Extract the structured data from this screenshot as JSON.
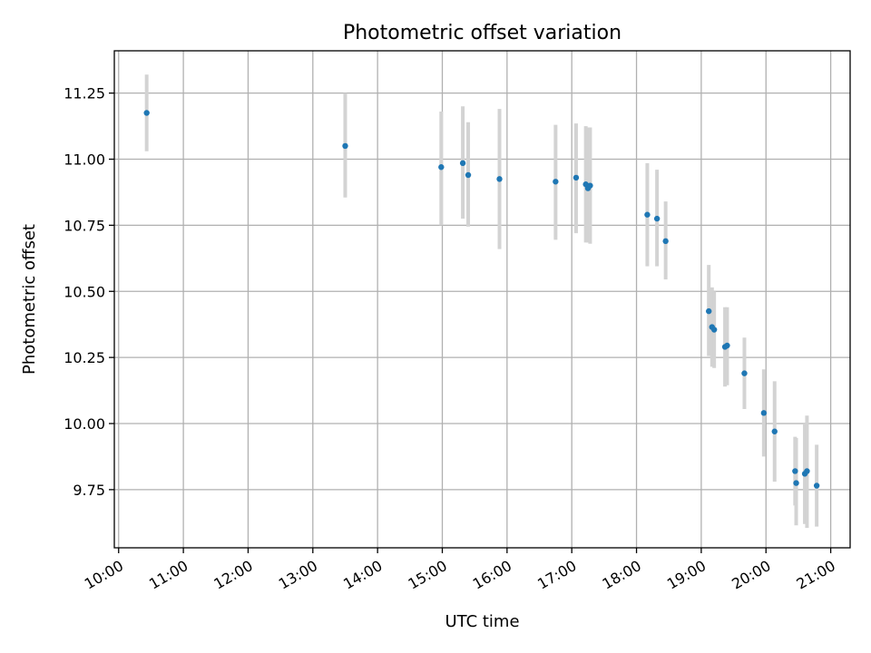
{
  "chart_data": {
    "type": "scatter",
    "title": "Photometric offset variation",
    "xlabel": "UTC time",
    "ylabel": "Photometric offset",
    "xlim": [
      "09:56",
      "21:18"
    ],
    "ylim": [
      9.53,
      11.41
    ],
    "xticks": [
      "10:00",
      "11:00",
      "12:00",
      "13:00",
      "14:00",
      "15:00",
      "16:00",
      "17:00",
      "18:00",
      "19:00",
      "20:00",
      "21:00"
    ],
    "yticks": [
      9.75,
      10.0,
      10.25,
      10.5,
      10.75,
      11.0,
      11.25
    ],
    "ytick_labels": [
      "9.75",
      "10.00",
      "10.25",
      "10.50",
      "10.75",
      "11.00",
      "11.25"
    ],
    "grid": true,
    "marker_color": "#1f77b4",
    "errorbar_color": "#d3d3d3",
    "points": [
      {
        "x": "10:26",
        "y": 11.175,
        "lo": 11.03,
        "hi": 11.32
      },
      {
        "x": "13:30",
        "y": 11.05,
        "lo": 10.855,
        "hi": 11.25
      },
      {
        "x": "14:59",
        "y": 10.97,
        "lo": 10.75,
        "hi": 11.18
      },
      {
        "x": "15:19",
        "y": 10.985,
        "lo": 10.775,
        "hi": 11.2
      },
      {
        "x": "15:24",
        "y": 10.94,
        "lo": 10.745,
        "hi": 11.14
      },
      {
        "x": "15:53",
        "y": 10.925,
        "lo": 10.66,
        "hi": 11.19
      },
      {
        "x": "16:45",
        "y": 10.915,
        "lo": 10.695,
        "hi": 11.13
      },
      {
        "x": "17:04",
        "y": 10.93,
        "lo": 10.72,
        "hi": 11.135
      },
      {
        "x": "17:13",
        "y": 10.905,
        "lo": 10.685,
        "hi": 11.125
      },
      {
        "x": "17:15",
        "y": 10.89,
        "lo": 10.685,
        "hi": 11.12
      },
      {
        "x": "17:17",
        "y": 10.9,
        "lo": 10.68,
        "hi": 11.12
      },
      {
        "x": "18:10",
        "y": 10.79,
        "lo": 10.595,
        "hi": 10.985
      },
      {
        "x": "18:19",
        "y": 10.775,
        "lo": 10.595,
        "hi": 10.96
      },
      {
        "x": "18:27",
        "y": 10.69,
        "lo": 10.545,
        "hi": 10.84
      },
      {
        "x": "19:07",
        "y": 10.425,
        "lo": 10.255,
        "hi": 10.6
      },
      {
        "x": "19:10",
        "y": 10.365,
        "lo": 10.215,
        "hi": 10.515
      },
      {
        "x": "19:12",
        "y": 10.355,
        "lo": 10.21,
        "hi": 10.5
      },
      {
        "x": "19:22",
        "y": 10.29,
        "lo": 10.14,
        "hi": 10.44
      },
      {
        "x": "19:24",
        "y": 10.295,
        "lo": 10.145,
        "hi": 10.44
      },
      {
        "x": "19:40",
        "y": 10.19,
        "lo": 10.055,
        "hi": 10.325
      },
      {
        "x": "19:58",
        "y": 10.04,
        "lo": 9.875,
        "hi": 10.205
      },
      {
        "x": "20:08",
        "y": 9.97,
        "lo": 9.78,
        "hi": 10.16
      },
      {
        "x": "20:27",
        "y": 9.82,
        "lo": 9.69,
        "hi": 9.95
      },
      {
        "x": "20:28",
        "y": 9.775,
        "lo": 9.615,
        "hi": 9.945
      },
      {
        "x": "20:36",
        "y": 9.81,
        "lo": 9.62,
        "hi": 10.0
      },
      {
        "x": "20:38",
        "y": 9.82,
        "lo": 9.605,
        "hi": 10.03
      },
      {
        "x": "20:47",
        "y": 9.765,
        "lo": 9.61,
        "hi": 9.92
      }
    ]
  }
}
